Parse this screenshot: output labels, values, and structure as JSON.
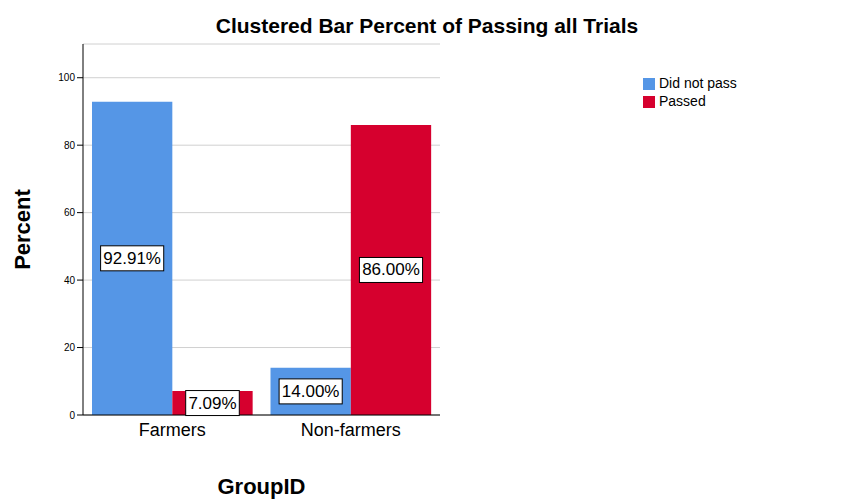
{
  "chart_data": {
    "type": "bar",
    "title": "Clustered Bar Percent of Passing all Trials",
    "x_label": "GroupID",
    "y_label": "Percent",
    "categories": [
      "Farmers",
      "Non-farmers"
    ],
    "series": [
      {
        "name": "Did not pass",
        "color": "#5596e6",
        "values": [
          92.91,
          14.0
        ],
        "value_labels": [
          "92.91%",
          "14.00%"
        ]
      },
      {
        "name": "Passed",
        "color": "#d6002e",
        "values": [
          7.09,
          86.0
        ],
        "value_labels": [
          "7.09%",
          "86.00%"
        ]
      }
    ],
    "ylim": [
      0,
      110
    ],
    "yticks": [
      0,
      20,
      40,
      60,
      80,
      100
    ],
    "grid": true,
    "legend": "right",
    "data_labels": true
  }
}
